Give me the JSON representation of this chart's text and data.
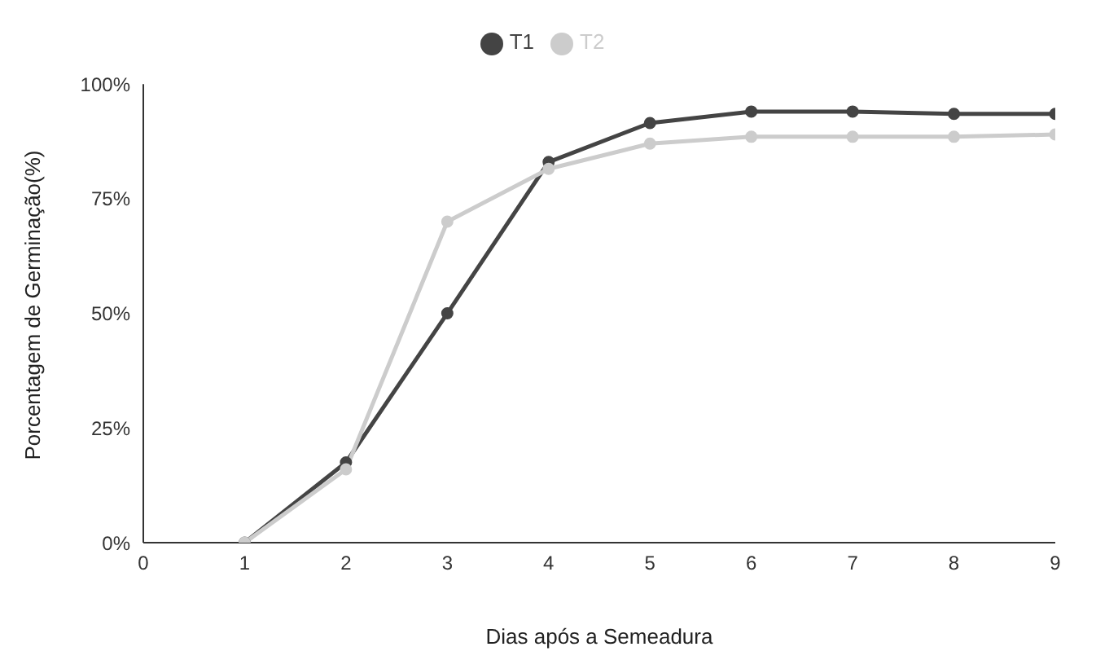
{
  "chart_data": {
    "type": "line",
    "xlabel": "Dias após a Semeadura",
    "ylabel": "Porcentagem de Germinação(%)",
    "x": [
      1,
      2,
      3,
      4,
      5,
      6,
      7,
      8,
      9
    ],
    "series": [
      {
        "name": "T1",
        "color": "#444444",
        "values": [
          0,
          17.5,
          50,
          83,
          91.5,
          94,
          94,
          93.5,
          93.5
        ]
      },
      {
        "name": "T2",
        "color": "#cccccc",
        "values": [
          0,
          16,
          70,
          81.5,
          87,
          88.5,
          88.5,
          88.5,
          89
        ]
      }
    ],
    "xlim": [
      0,
      9
    ],
    "xticks": [
      0,
      1,
      2,
      3,
      4,
      5,
      6,
      7,
      8,
      9
    ],
    "ylim": [
      0,
      100
    ],
    "yticks": [
      {
        "value": 0,
        "label": "0%"
      },
      {
        "value": 25,
        "label": "25%"
      },
      {
        "value": 50,
        "label": "50%"
      },
      {
        "value": 75,
        "label": "75%"
      },
      {
        "value": 100,
        "label": "100%"
      }
    ],
    "grid": false,
    "legend": "top",
    "marker": "circle",
    "line_style": "solid"
  }
}
